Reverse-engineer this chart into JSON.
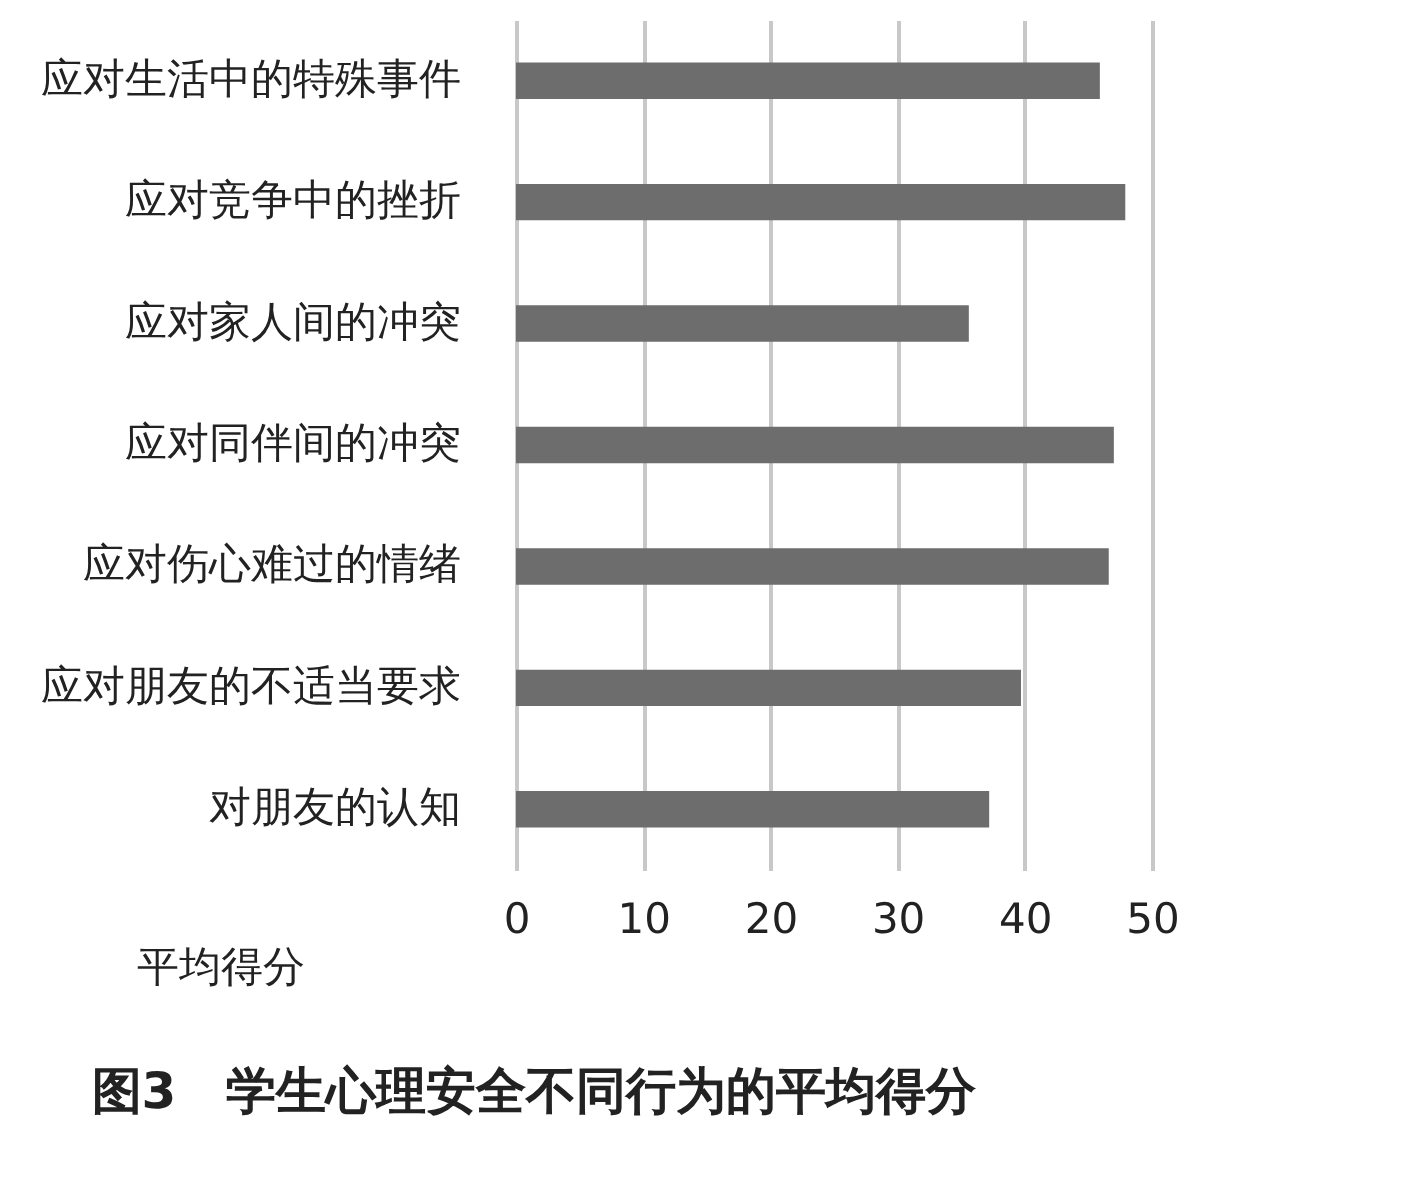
{
  "chart_data": {
    "type": "bar",
    "orientation": "horizontal",
    "title": "图3　学生心理安全不同行为的平均得分",
    "xlabel": "平均得分",
    "categories": [
      "应对生活中的特殊事件",
      "应对竞争中的挫折",
      "应对家人间的冲突",
      "应对同伴间的冲突",
      "应对伤心难过的情绪",
      "应对朋友的不适当要求",
      "对朋友的认知"
    ],
    "values": [
      45.9,
      47.9,
      35.6,
      47.0,
      46.6,
      39.7,
      37.2
    ],
    "color": "#6d6d6d",
    "xlim": [
      0,
      50
    ],
    "xticks": [
      0,
      10,
      20,
      30,
      40,
      50
    ],
    "grid": "x"
  }
}
